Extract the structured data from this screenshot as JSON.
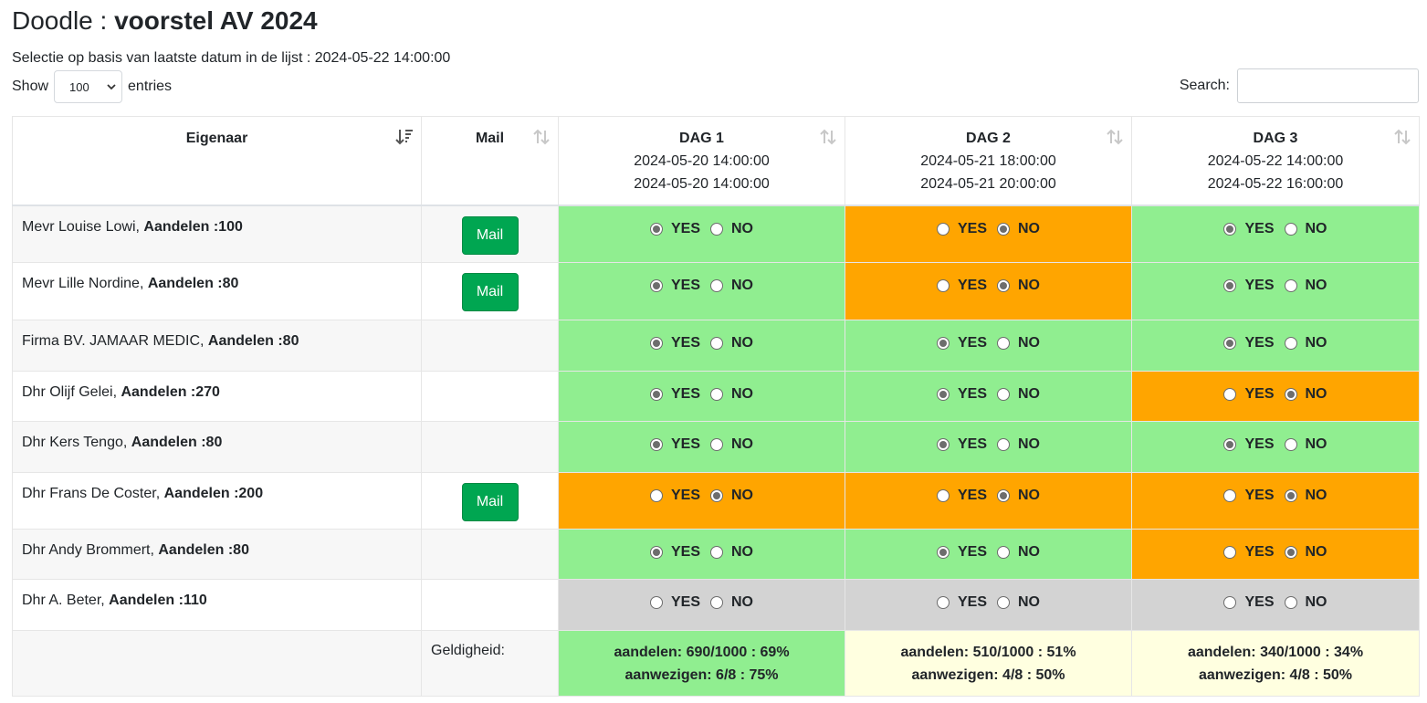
{
  "header": {
    "title_prefix": "Doodle : ",
    "title_bold": "voorstel AV 2024",
    "subtitle": "Selectie op basis van laatste datum in de lijst : 2024-05-22 14:00:00"
  },
  "controls": {
    "show_label": "Show",
    "entries_value": "100",
    "entries_label": "entries",
    "search_label": "Search:",
    "search_value": ""
  },
  "columns": {
    "owner": "Eigenaar",
    "mail": "Mail",
    "days": [
      {
        "label": "DAG 1",
        "start": "2024-05-20 14:00:00",
        "end": "2024-05-20 14:00:00"
      },
      {
        "label": "DAG 2",
        "start": "2024-05-21 18:00:00",
        "end": "2024-05-21 20:00:00"
      },
      {
        "label": "DAG 3",
        "start": "2024-05-22 14:00:00",
        "end": "2024-05-22 16:00:00"
      }
    ]
  },
  "vote_labels": {
    "yes": "YES",
    "no": "NO"
  },
  "rows": [
    {
      "name": "Mevr Louise Lowi, ",
      "shares": "Aandelen :100",
      "mail_button": "Mail",
      "votes": [
        "yes",
        "no",
        "yes"
      ]
    },
    {
      "name": "Mevr Lille Nordine, ",
      "shares": "Aandelen :80",
      "mail_button": "Mail",
      "votes": [
        "yes",
        "no",
        "yes"
      ]
    },
    {
      "name": "Firma BV. JAMAAR MEDIC, ",
      "shares": "Aandelen :80",
      "mail_button": "",
      "votes": [
        "yes",
        "yes",
        "yes"
      ]
    },
    {
      "name": "Dhr Olijf Gelei, ",
      "shares": "Aandelen :270",
      "mail_button": "",
      "votes": [
        "yes",
        "yes",
        "no"
      ]
    },
    {
      "name": "Dhr Kers Tengo, ",
      "shares": "Aandelen :80",
      "mail_button": "",
      "votes": [
        "yes",
        "yes",
        "yes"
      ]
    },
    {
      "name": "Dhr Frans De Coster, ",
      "shares": "Aandelen :200",
      "mail_button": "Mail",
      "votes": [
        "no",
        "no",
        "no"
      ]
    },
    {
      "name": "Dhr Andy Brommert, ",
      "shares": "Aandelen :80",
      "mail_button": "",
      "votes": [
        "yes",
        "yes",
        "no"
      ]
    },
    {
      "name": "Dhr A. Beter, ",
      "shares": "Aandelen :110",
      "mail_button": "",
      "votes": [
        "none",
        "none",
        "none"
      ]
    }
  ],
  "footer": {
    "label": "Geldigheid:",
    "stats": [
      {
        "shares": "aandelen: 690/1000 : 69%",
        "present": "aanwezigen: 6/8 : 75%",
        "state": "valid"
      },
      {
        "shares": "aandelen: 510/1000 : 51%",
        "present": "aanwezigen: 4/8 : 50%",
        "state": "invalid"
      },
      {
        "shares": "aandelen: 340/1000 : 34%",
        "present": "aanwezigen: 4/8 : 50%",
        "state": "invalid"
      }
    ]
  },
  "colors": {
    "yes_cell": "#90ee90",
    "no_cell": "#ffa500",
    "none_cell": "#d3d3d3",
    "valid_footer": "#90ee90",
    "invalid_footer": "#ffffe0",
    "mail_button": "#00a651"
  },
  "icons": {
    "owner_sort": "sort-descending-icon",
    "other_sort": "sort-both-icon",
    "select_chevron": "chevron-down-icon"
  }
}
